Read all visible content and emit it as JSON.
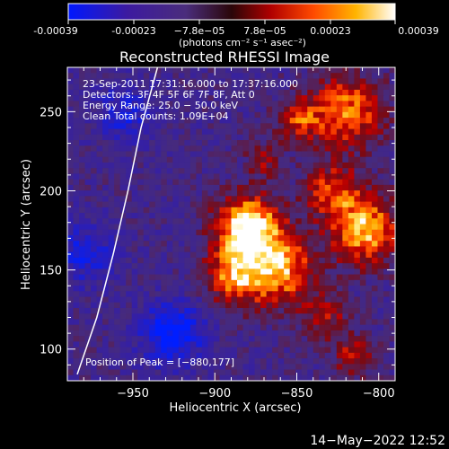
{
  "colorbar": {
    "ticks": [
      "-0.00039",
      "-0.00023",
      "−7.8e−05",
      "7.8e−05",
      "0.00023",
      "0.00039"
    ],
    "unit": "(photons cm⁻² s⁻¹ asec⁻²)",
    "min": -0.00039,
    "max": 0.00039
  },
  "chart_data": {
    "type": "heatmap",
    "title": "Reconstructed RHESSI Image",
    "xlabel": "Heliocentric X (arcsec)",
    "ylabel": "Heliocentric Y (arcsec)",
    "xlim": [
      -990,
      -790
    ],
    "ylim": [
      80,
      278
    ],
    "xticks": [
      -950,
      -900,
      -850,
      -800
    ],
    "yticks": [
      100,
      150,
      200,
      250
    ],
    "annotations": [
      "23-Sep-2011 17:31:16.000 to 17:37:16.000",
      "Detectors: 3F 4F 5F 6F 7F 8F, Att 0",
      "Energy Range: 25.0 − 50.0 keV",
      "Clean     Total counts: 1.09E+04"
    ],
    "peak_label": "Position of Peak = [−880,177]",
    "peak": [
      -880,
      177
    ],
    "limb_curve": [
      [
        -984,
        84
      ],
      [
        -972,
        120
      ],
      [
        -962,
        160
      ],
      [
        -953,
        200
      ],
      [
        -945,
        240
      ],
      [
        -935,
        278
      ]
    ],
    "bright_regions": [
      {
        "x": -880,
        "y": 177,
        "sigma": 14,
        "amp": 1.0
      },
      {
        "x": -862,
        "y": 150,
        "sigma": 16,
        "amp": 0.78
      },
      {
        "x": -890,
        "y": 145,
        "sigma": 12,
        "amp": 0.6
      },
      {
        "x": -808,
        "y": 175,
        "sigma": 15,
        "amp": 0.8
      },
      {
        "x": -828,
        "y": 200,
        "sigma": 12,
        "amp": 0.55
      },
      {
        "x": -820,
        "y": 250,
        "sigma": 16,
        "amp": 0.7
      },
      {
        "x": -850,
        "y": 245,
        "sigma": 9,
        "amp": 0.5
      },
      {
        "x": -832,
        "y": 120,
        "sigma": 10,
        "amp": 0.4
      },
      {
        "x": -815,
        "y": 95,
        "sigma": 9,
        "amp": 0.45
      },
      {
        "x": -870,
        "y": 220,
        "sigma": 8,
        "amp": 0.35
      }
    ],
    "dark_regions": [
      {
        "x": -925,
        "y": 110,
        "sigma": 14,
        "amp": 0.8
      },
      {
        "x": -980,
        "y": 160,
        "sigma": 14,
        "amp": 0.5
      },
      {
        "x": -955,
        "y": 250,
        "sigma": 13,
        "amp": 0.5
      }
    ]
  },
  "footer": {
    "timestamp": "14−May−2022 12:52"
  }
}
